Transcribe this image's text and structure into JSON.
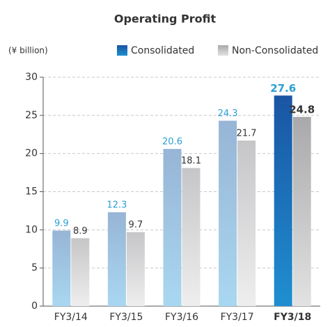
{
  "chart_data": {
    "type": "bar",
    "title": "Operating Profit",
    "ylabel": "(¥ billion)",
    "categories": [
      "FY3/14",
      "FY3/15",
      "FY3/16",
      "FY3/17",
      "FY3/18"
    ],
    "series": [
      {
        "name": "Consolidated",
        "color": [
          "#97b5d6",
          "#a9d7f1"
        ],
        "highlight_color": [
          "#1a55a3",
          "#1f8fd0"
        ],
        "label_color": "#2a9fd6",
        "values": [
          9.9,
          12.3,
          20.6,
          24.3,
          27.6
        ]
      },
      {
        "name": "Non-Consolidated",
        "color": [
          "#c6c6c8",
          "#eeeeef"
        ],
        "highlight_color": [
          "#a9a9ab",
          "#e2e2e3"
        ],
        "label_color": "#333333",
        "values": [
          8.9,
          9.7,
          18.1,
          21.7,
          24.8
        ]
      }
    ],
    "highlight_index": 4,
    "ylim": [
      0,
      30
    ],
    "yticks": [
      0,
      5,
      10,
      15,
      20,
      25,
      30
    ],
    "grid": true,
    "legend": "top"
  }
}
